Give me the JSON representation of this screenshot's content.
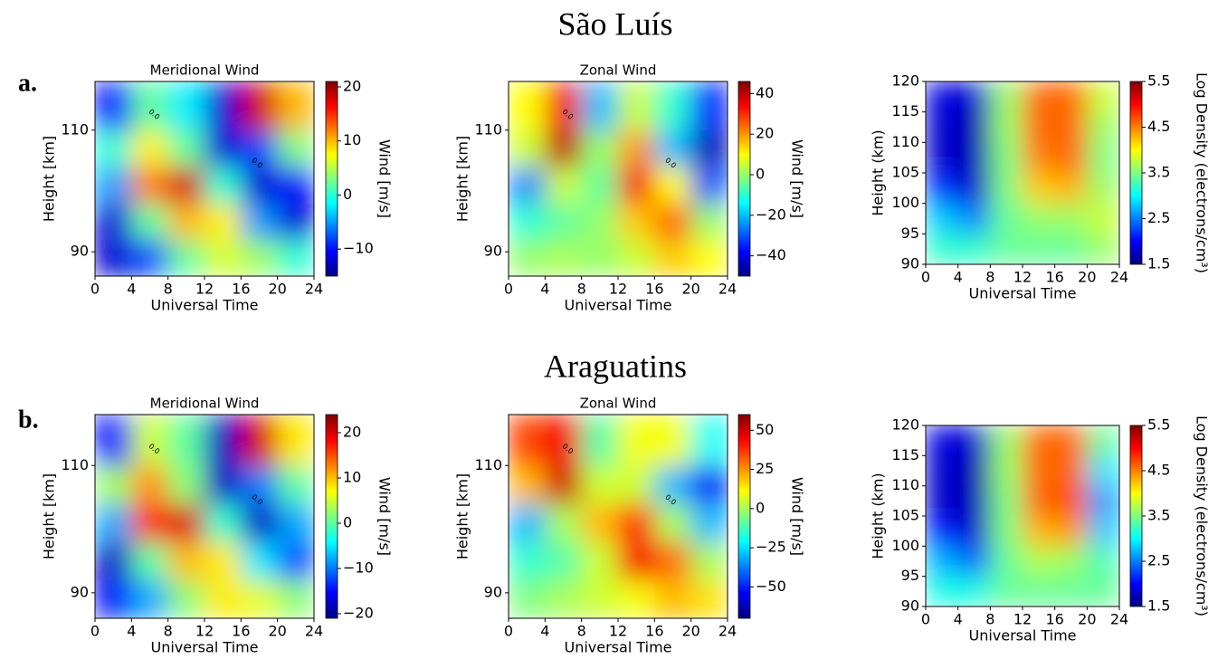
{
  "rows": [
    {
      "label": "a.",
      "title": "São Luís"
    },
    {
      "label": "b.",
      "title": "Araguatins"
    }
  ],
  "chart_data": [
    {
      "type": "heatmap",
      "title": "Meridional Wind",
      "xlabel": "Universal Time",
      "ylabel": "Height [km]",
      "colormap": "jet",
      "xlim": [
        0,
        24
      ],
      "xticks": [
        0,
        4,
        8,
        12,
        16,
        20,
        24
      ],
      "ylim": [
        86,
        118
      ],
      "yticks": [
        90,
        110
      ],
      "xbins": [
        0,
        4,
        8,
        12,
        16,
        20,
        24
      ],
      "ybins": [
        86,
        92,
        98,
        104,
        110,
        118
      ],
      "z": [
        [
          -12,
          -8,
          2,
          6,
          4,
          0
        ],
        [
          -12,
          2,
          10,
          8,
          -5,
          -12
        ],
        [
          -5,
          12,
          18,
          0,
          -12,
          -10
        ],
        [
          0,
          8,
          2,
          -12,
          -8,
          3
        ],
        [
          -10,
          2,
          -2,
          -12,
          18,
          10
        ]
      ],
      "contour_label": "0.0",
      "colorbar": {
        "label": "Wind [m/s]",
        "lim": [
          -15,
          21
        ],
        "ticks": [
          {
            "value": -10,
            "label": "−10"
          },
          0,
          10,
          20
        ]
      }
    },
    {
      "type": "heatmap",
      "title": "Zonal Wind",
      "xlabel": "Universal Time",
      "ylabel": "Height [km]",
      "colormap": "jet",
      "xlim": [
        0,
        24
      ],
      "xticks": [
        0,
        4,
        8,
        12,
        16,
        20,
        24
      ],
      "ylim": [
        86,
        118
      ],
      "yticks": [
        90,
        110
      ],
      "xbins": [
        0,
        4,
        8,
        12,
        16,
        20,
        24
      ],
      "ybins": [
        86,
        92,
        98,
        104,
        110,
        118
      ],
      "z": [
        [
          0,
          2,
          0,
          5,
          15,
          10
        ],
        [
          -10,
          -5,
          0,
          15,
          25,
          0
        ],
        [
          -25,
          5,
          -5,
          35,
          10,
          -30
        ],
        [
          5,
          40,
          0,
          20,
          -20,
          -45
        ],
        [
          10,
          35,
          -20,
          5,
          -10,
          -35
        ]
      ],
      "contour_label": "0.0",
      "colorbar": {
        "label": "Wind [m/s]",
        "lim": [
          -50,
          46
        ],
        "ticks": [
          {
            "value": -40,
            "label": "−40"
          },
          {
            "value": -20,
            "label": "−20"
          },
          0,
          20,
          40
        ]
      }
    },
    {
      "type": "heatmap",
      "xlabel": "Universal Time",
      "ylabel": "Height (km)",
      "colormap": "jet",
      "xlim": [
        0,
        24
      ],
      "xticks": [
        0,
        4,
        8,
        12,
        16,
        20,
        24
      ],
      "ylim": [
        90,
        120
      ],
      "yticks": [
        90,
        95,
        100,
        105,
        110,
        115,
        120
      ],
      "xbins": [
        0,
        4,
        8,
        12,
        16,
        20,
        24
      ],
      "ybins": [
        90,
        95,
        100,
        105,
        110,
        115,
        120
      ],
      "z": [
        [
          3.2,
          3.2,
          3.4,
          3.4,
          3.4,
          3.6
        ],
        [
          2.8,
          2.5,
          3.4,
          3.6,
          3.6,
          3.8
        ],
        [
          2.2,
          1.8,
          3.5,
          4.2,
          4.3,
          3.6
        ],
        [
          1.8,
          1.7,
          3.5,
          4.5,
          4.6,
          3.5
        ],
        [
          1.8,
          1.7,
          3.6,
          4.6,
          4.6,
          3.6
        ],
        [
          1.9,
          1.8,
          3.6,
          4.6,
          4.6,
          3.8
        ]
      ],
      "colorbar": {
        "label": "Log Density (electrons/cm³)",
        "lim": [
          1.5,
          5.5
        ],
        "ticks": [
          1.5,
          2.5,
          3.5,
          4.5,
          5.5
        ]
      }
    },
    {
      "type": "heatmap",
      "title": "Meridional Wind",
      "xlabel": "Universal Time",
      "ylabel": "Height [km]",
      "colormap": "jet",
      "xlim": [
        0,
        24
      ],
      "xticks": [
        0,
        4,
        8,
        12,
        16,
        20,
        24
      ],
      "ylim": [
        86,
        118
      ],
      "yticks": [
        90,
        110
      ],
      "xbins": [
        0,
        4,
        8,
        12,
        16,
        20,
        24
      ],
      "ybins": [
        86,
        92,
        98,
        104,
        110,
        118
      ],
      "z": [
        [
          -15,
          -8,
          2,
          8,
          6,
          2
        ],
        [
          -18,
          0,
          10,
          8,
          -5,
          -12
        ],
        [
          -8,
          16,
          20,
          -2,
          -18,
          -8
        ],
        [
          3,
          12,
          2,
          -18,
          -10,
          0
        ],
        [
          -15,
          5,
          0,
          -18,
          20,
          8
        ]
      ],
      "contour_label": "0.0",
      "colorbar": {
        "label": "Wind [m/s]",
        "lim": [
          -21,
          24
        ],
        "ticks": [
          {
            "value": -20,
            "label": "−20"
          },
          {
            "value": -10,
            "label": "−10"
          },
          0,
          10,
          20
        ]
      }
    },
    {
      "type": "heatmap",
      "title": "Zonal Wind",
      "xlabel": "Universal Time",
      "ylabel": "Height [km]",
      "colormap": "jet",
      "xlim": [
        0,
        24
      ],
      "xticks": [
        0,
        4,
        8,
        12,
        16,
        20,
        24
      ],
      "ylim": [
        86,
        118
      ],
      "yticks": [
        90,
        110
      ],
      "xbins": [
        0,
        4,
        8,
        12,
        16,
        20,
        24
      ],
      "ybins": [
        86,
        92,
        98,
        104,
        110,
        118
      ],
      "z": [
        [
          -5,
          0,
          5,
          10,
          20,
          15
        ],
        [
          -15,
          -10,
          5,
          45,
          30,
          0
        ],
        [
          -30,
          0,
          20,
          40,
          0,
          -30
        ],
        [
          20,
          50,
          5,
          5,
          -30,
          -55
        ],
        [
          35,
          45,
          -10,
          10,
          10,
          -20
        ]
      ],
      "contour_label": "0.0",
      "colorbar": {
        "label": "Wind [m/s]",
        "lim": [
          -70,
          60
        ],
        "ticks": [
          {
            "value": -50,
            "label": "−50"
          },
          {
            "value": -25,
            "label": "−25"
          },
          0,
          25,
          50
        ]
      }
    },
    {
      "type": "heatmap",
      "xlabel": "Universal Time",
      "ylabel": "Height (km)",
      "colormap": "jet",
      "xlim": [
        0,
        24
      ],
      "xticks": [
        0,
        4,
        8,
        12,
        16,
        20,
        24
      ],
      "ylim": [
        90,
        120
      ],
      "yticks": [
        90,
        95,
        100,
        105,
        110,
        115,
        120
      ],
      "xbins": [
        0,
        4,
        8,
        12,
        16,
        20,
        24
      ],
      "ybins": [
        90,
        95,
        100,
        105,
        110,
        115,
        120
      ],
      "z": [
        [
          3.1,
          3.1,
          3.4,
          3.4,
          3.4,
          3.4
        ],
        [
          2.7,
          2.4,
          3.4,
          3.7,
          3.6,
          3.3
        ],
        [
          2.1,
          1.8,
          3.5,
          4.3,
          4.4,
          2.8
        ],
        [
          1.8,
          1.7,
          3.5,
          4.6,
          4.7,
          2.6
        ],
        [
          1.8,
          1.7,
          3.6,
          4.6,
          4.6,
          2.9
        ],
        [
          1.9,
          1.8,
          3.6,
          4.6,
          4.6,
          3.4
        ]
      ],
      "colorbar": {
        "label": "Log Density (electrons/cm³)",
        "lim": [
          1.5,
          5.5
        ],
        "ticks": [
          1.5,
          2.5,
          3.5,
          4.5,
          5.5
        ]
      }
    }
  ]
}
